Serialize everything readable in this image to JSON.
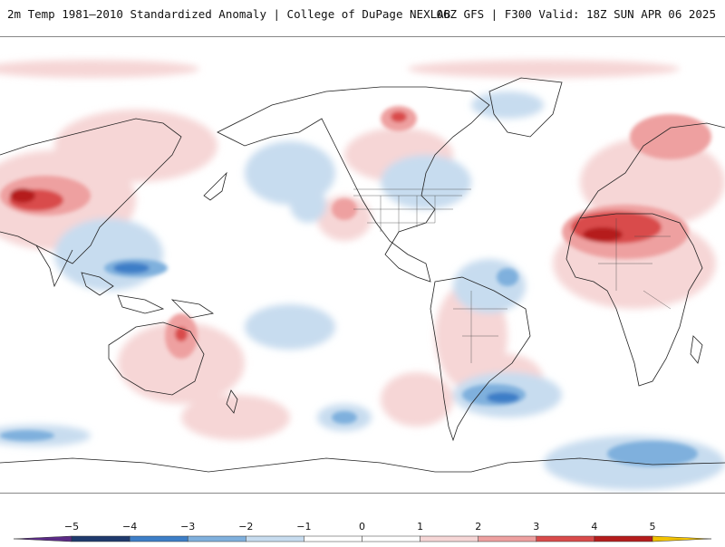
{
  "header": {
    "title_left": "2m Temp 1981–2010 Standardized Anomaly | College of DuPage NEXLAB",
    "title_right": "06Z GFS | F300 Valid: 18Z SUN APR 06 2025"
  },
  "map": {
    "projection": "equirectangular",
    "central_longitude": -90
  },
  "legend": {
    "ticks": [
      "−5",
      "−4",
      "−3",
      "−2",
      "−1",
      "0",
      "1",
      "2",
      "3",
      "4",
      "5"
    ],
    "colors": {
      "m5": "#5b2a86",
      "m4": "#1f3a6d",
      "m3": "#3d7ec7",
      "m2": "#7fb0dd",
      "m1": "#c7dcef",
      "zero": "#ffffff",
      "p1": "#f6d6d6",
      "p2": "#eea0a0",
      "p3": "#d94b4b",
      "p4": "#b51c1c",
      "p5": "#7a0a0a",
      "over": "#f2c200"
    }
  }
}
